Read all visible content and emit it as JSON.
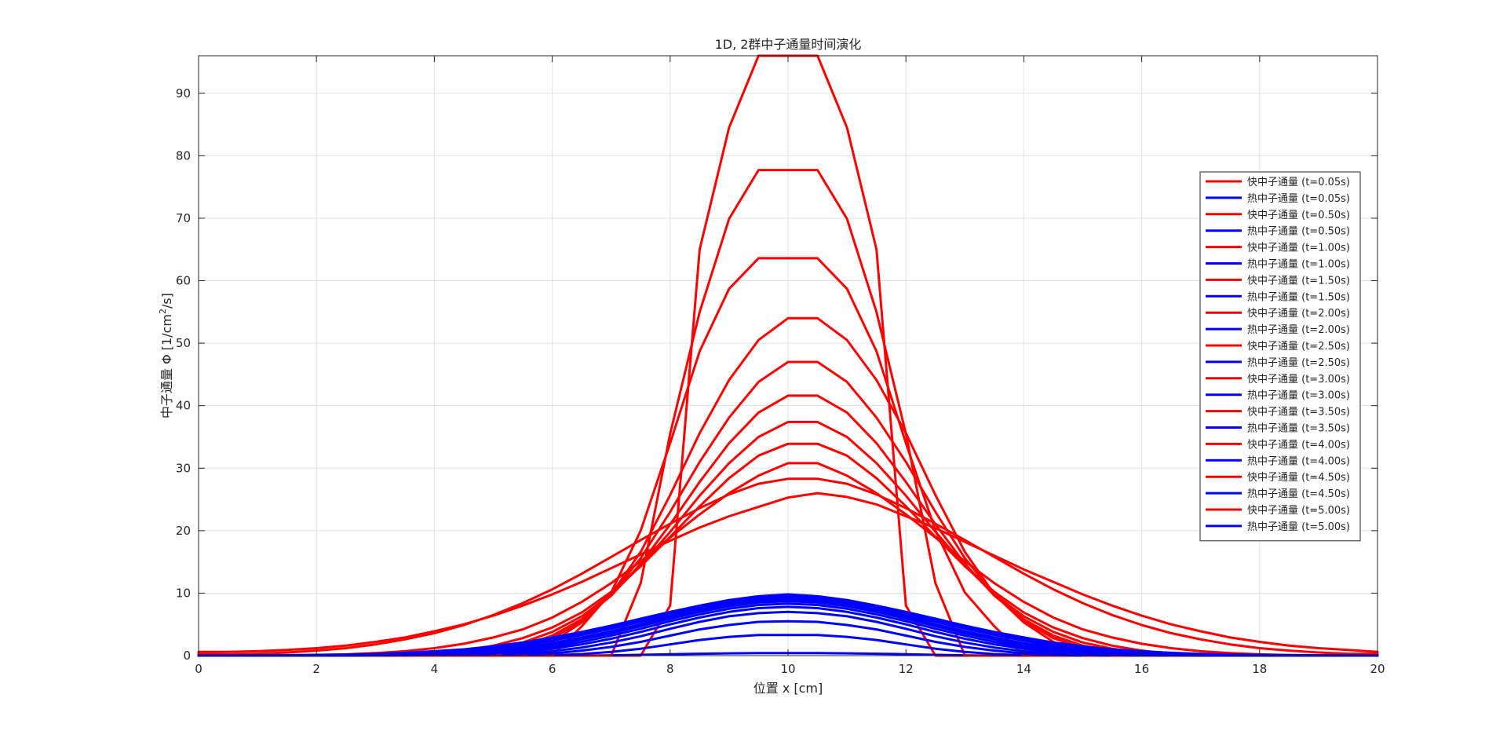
{
  "chart_data": {
    "type": "line",
    "title": "1D, 2群中子通量时间演化",
    "xlabel": "位置 x [cm]",
    "ylabel_prefix": "中子通量 Φ [1/cm",
    "ylabel_sup": "2",
    "ylabel_suffix": "/s]",
    "xlim": [
      0,
      20
    ],
    "ylim": [
      0,
      96
    ],
    "xticks": [
      0,
      2,
      4,
      6,
      8,
      10,
      12,
      14,
      16,
      18,
      20
    ],
    "yticks": [
      0,
      10,
      20,
      30,
      40,
      50,
      60,
      70,
      80,
      90
    ],
    "grid": true,
    "legend_position": "right",
    "colors": {
      "fast": "#ff0000",
      "thermal": "#0000ff",
      "axes": "#262626",
      "grid": "#e1e1e1"
    },
    "x": [
      0,
      0.5,
      1,
      1.5,
      2,
      2.5,
      3,
      3.5,
      4,
      4.5,
      5,
      5.5,
      6,
      6.5,
      7,
      7.5,
      8,
      8.5,
      9,
      9.5,
      10,
      10.5,
      11,
      11.5,
      12,
      12.5,
      13,
      13.5,
      14,
      14.5,
      15,
      15.5,
      16,
      16.5,
      17,
      17.5,
      18,
      18.5,
      19,
      19.5,
      20
    ],
    "series": [
      {
        "name": "快中子通量 (t=0.05s)",
        "color": "#ff0000",
        "values": [
          0.3,
          0,
          0,
          0,
          0,
          0,
          0,
          0,
          0,
          0,
          0,
          0,
          0,
          0,
          0,
          0,
          8,
          65,
          84.5,
          96,
          96,
          96,
          84.5,
          65,
          8,
          0,
          0,
          0,
          0,
          0,
          0,
          0,
          0,
          0,
          0,
          0,
          0,
          0,
          0,
          0,
          0.3
        ]
      },
      {
        "name": "热中子通量 (t=0.05s)",
        "color": "#0000ff",
        "values": [
          0,
          0,
          0,
          0,
          0,
          0,
          0,
          0,
          0,
          0,
          0,
          0,
          0,
          0,
          0.05,
          0.12,
          0.22,
          0.3,
          0.36,
          0.4,
          0.4,
          0.4,
          0.36,
          0.3,
          0.22,
          0.12,
          0.05,
          0,
          0,
          0,
          0,
          0,
          0,
          0,
          0,
          0,
          0,
          0,
          0,
          0,
          0
        ]
      },
      {
        "name": "快中子通量 (t=0.50s)",
        "color": "#ff0000",
        "values": [
          0.3,
          0,
          0,
          0,
          0,
          0,
          0,
          0,
          0,
          0,
          0,
          0,
          0,
          0,
          0,
          11.6,
          35.5,
          55,
          69.9,
          77.7,
          77.7,
          77.7,
          69.9,
          55,
          35.5,
          11.6,
          0,
          0,
          0,
          0,
          0,
          0,
          0,
          0,
          0,
          0,
          0,
          0,
          0,
          0,
          0.3
        ]
      },
      {
        "name": "热中子通量 (t=0.50s)",
        "color": "#0000ff",
        "values": [
          0,
          0,
          0,
          0,
          0,
          0,
          0,
          0,
          0,
          0,
          0,
          0,
          0.05,
          0.25,
          0.6,
          1.1,
          1.8,
          2.5,
          3,
          3.3,
          3.3,
          3.3,
          3,
          2.5,
          1.8,
          1.1,
          0.6,
          0.25,
          0.05,
          0,
          0,
          0,
          0,
          0,
          0,
          0,
          0,
          0,
          0,
          0,
          0
        ]
      },
      {
        "name": "快中子通量 (t=1.00s)",
        "color": "#ff0000",
        "values": [
          0.3,
          0,
          0,
          0,
          0,
          0,
          0,
          0,
          0,
          0,
          0,
          0,
          0,
          4.7,
          10.1,
          20,
          34,
          48.7,
          58.7,
          63.6,
          63.6,
          63.6,
          58.7,
          48.7,
          34,
          20,
          10.1,
          4.7,
          0,
          0,
          0,
          0,
          0,
          0,
          0,
          0,
          0,
          0,
          0,
          0,
          0.3
        ]
      },
      {
        "name": "热中子通量 (t=1.00s)",
        "color": "#0000ff",
        "values": [
          0,
          0,
          0,
          0,
          0,
          0,
          0,
          0,
          0,
          0,
          0,
          0.1,
          0.35,
          0.8,
          1.4,
          2.2,
          3.2,
          4.2,
          4.9,
          5.4,
          5.5,
          5.4,
          4.9,
          4.2,
          3.2,
          2.2,
          1.4,
          0.8,
          0.35,
          0.1,
          0,
          0,
          0,
          0,
          0,
          0,
          0,
          0,
          0,
          0,
          0
        ]
      },
      {
        "name": "快中子通量 (t=1.50s)",
        "color": "#ff0000",
        "values": [
          0.3,
          0,
          0,
          0,
          0,
          0,
          0,
          0,
          0,
          0,
          0,
          0,
          2.2,
          5.3,
          9.8,
          16.6,
          25.7,
          35.6,
          44.1,
          50.5,
          54,
          54,
          50.5,
          44.1,
          35.6,
          25.7,
          16.6,
          9.8,
          5.3,
          2.2,
          0,
          0,
          0,
          0,
          0,
          0,
          0,
          0,
          0,
          0,
          0.3
        ]
      },
      {
        "name": "热中子通量 (t=1.50s)",
        "color": "#0000ff",
        "values": [
          0,
          0,
          0,
          0,
          0,
          0,
          0,
          0,
          0,
          0,
          0.1,
          0.3,
          0.7,
          1.3,
          2.1,
          3.1,
          4.3,
          5.4,
          6.3,
          6.8,
          7,
          6.8,
          6.3,
          5.4,
          4.3,
          3.1,
          2.1,
          1.3,
          0.7,
          0.3,
          0.1,
          0,
          0,
          0,
          0,
          0,
          0,
          0,
          0,
          0,
          0
        ]
      },
      {
        "name": "快中子通量 (t=2.00s)",
        "color": "#ff0000",
        "values": [
          0.3,
          0,
          0,
          0,
          0,
          0,
          0,
          0,
          0,
          0,
          0,
          1.2,
          2.8,
          5.6,
          9.8,
          15.6,
          23,
          31,
          38.1,
          43.8,
          47,
          47,
          43.8,
          38.1,
          31,
          23,
          15.6,
          9.8,
          5.6,
          2.8,
          1.2,
          0,
          0,
          0,
          0,
          0,
          0,
          0,
          0,
          0,
          0.3
        ]
      },
      {
        "name": "热中子通量 (t=2.00s)",
        "color": "#0000ff",
        "values": [
          0,
          0,
          0,
          0,
          0,
          0,
          0,
          0,
          0,
          0.1,
          0.3,
          0.6,
          1.1,
          1.8,
          2.7,
          3.8,
          5,
          6.1,
          7,
          7.6,
          7.8,
          7.6,
          7,
          6.1,
          5,
          3.8,
          2.7,
          1.8,
          1.1,
          0.6,
          0.3,
          0.1,
          0,
          0,
          0,
          0,
          0,
          0,
          0,
          0,
          0
        ]
      },
      {
        "name": "快中子通量 (t=2.50s)",
        "color": "#ff0000",
        "values": [
          0.3,
          0,
          0,
          0,
          0,
          0,
          0,
          0,
          0,
          0,
          0.7,
          1.6,
          3.2,
          5.8,
          9.6,
          14.7,
          21,
          27.8,
          34,
          38.9,
          41.6,
          41.6,
          38.9,
          34,
          27.8,
          21,
          14.7,
          9.6,
          5.8,
          3.2,
          1.6,
          0.7,
          0,
          0,
          0,
          0,
          0,
          0,
          0,
          0,
          0.3
        ]
      },
      {
        "name": "热中子通量 (t=2.50s)",
        "color": "#0000ff",
        "values": [
          0,
          0,
          0,
          0,
          0,
          0,
          0,
          0,
          0.05,
          0.2,
          0.4,
          0.8,
          1.4,
          2.2,
          3.2,
          4.3,
          5.5,
          6.6,
          7.5,
          8.1,
          8.3,
          8.1,
          7.5,
          6.6,
          5.5,
          4.3,
          3.2,
          2.2,
          1.4,
          0.8,
          0.4,
          0.2,
          0.05,
          0,
          0,
          0,
          0,
          0,
          0,
          0,
          0
        ]
      },
      {
        "name": "快中子通量 (t=3.00s)",
        "color": "#ff0000",
        "values": [
          0.3,
          0,
          0,
          0,
          0,
          0,
          0,
          0,
          0,
          0.5,
          1.1,
          2.1,
          3.8,
          6.3,
          9.8,
          14.4,
          19.8,
          25.6,
          30.8,
          35,
          37.4,
          37.4,
          35,
          30.8,
          25.6,
          19.8,
          14.4,
          9.8,
          6.3,
          3.8,
          2.1,
          1.1,
          0.5,
          0,
          0,
          0,
          0,
          0,
          0,
          0,
          0.3
        ]
      },
      {
        "name": "热中子通量 (t=3.00s)",
        "color": "#0000ff",
        "values": [
          0,
          0,
          0,
          0,
          0,
          0,
          0,
          0.05,
          0.15,
          0.3,
          0.6,
          1.1,
          1.7,
          2.6,
          3.6,
          4.7,
          5.9,
          7,
          7.9,
          8.5,
          8.7,
          8.5,
          7.9,
          7,
          5.9,
          4.7,
          3.6,
          2.6,
          1.7,
          1.1,
          0.6,
          0.3,
          0.15,
          0.05,
          0,
          0,
          0,
          0,
          0,
          0,
          0
        ]
      },
      {
        "name": "快中子通量 (t=3.50s)",
        "color": "#ff0000",
        "values": [
          0.3,
          0,
          0,
          0,
          0,
          0,
          0,
          0.1,
          0.3,
          0.8,
          1.6,
          2.8,
          4.5,
          6.9,
          10.2,
          14.3,
          19,
          23.9,
          28.4,
          32,
          33.9,
          33.9,
          32,
          28.4,
          23.9,
          19,
          14.3,
          10.2,
          6.9,
          4.5,
          2.8,
          1.6,
          0.8,
          0.3,
          0.1,
          0,
          0,
          0,
          0,
          0,
          0.3
        ]
      },
      {
        "name": "热中子通量 (t=3.50s)",
        "color": "#0000ff",
        "values": [
          0,
          0,
          0,
          0,
          0,
          0,
          0.05,
          0.1,
          0.2,
          0.4,
          0.8,
          1.3,
          2,
          2.9,
          3.9,
          5,
          6.2,
          7.3,
          8.2,
          8.8,
          9,
          8.8,
          8.2,
          7.3,
          6.2,
          5,
          3.9,
          2.9,
          2,
          1.3,
          0.8,
          0.4,
          0.2,
          0.1,
          0.05,
          0,
          0,
          0,
          0,
          0,
          0
        ]
      },
      {
        "name": "快中子通量 (t=4.00s)",
        "color": "#ff0000",
        "values": [
          0.3,
          0,
          0,
          0,
          0.1,
          0.2,
          0.4,
          0.7,
          1.2,
          1.9,
          2.9,
          4.2,
          6.1,
          8.6,
          11.6,
          15.1,
          18.9,
          22.6,
          26,
          28.8,
          30.8,
          30.8,
          28.8,
          26,
          22.6,
          18.9,
          15.1,
          11.6,
          8.6,
          6.1,
          4.2,
          2.9,
          1.9,
          1.2,
          0.7,
          0.4,
          0.2,
          0.1,
          0,
          0,
          0.3
        ]
      },
      {
        "name": "热中子通量 (t=4.00s)",
        "color": "#0000ff",
        "values": [
          0,
          0,
          0,
          0,
          0,
          0.05,
          0.1,
          0.2,
          0.35,
          0.6,
          1,
          1.6,
          2.4,
          3.3,
          4.3,
          5.4,
          6.5,
          7.6,
          8.5,
          9.1,
          9.3,
          9.1,
          8.5,
          7.6,
          6.5,
          5.4,
          4.3,
          3.3,
          2.4,
          1.6,
          1,
          0.6,
          0.35,
          0.2,
          0.1,
          0.05,
          0,
          0,
          0,
          0,
          0
        ]
      },
      {
        "name": "快中子通量 (t=4.50s)",
        "color": "#ff0000",
        "values": [
          0.3,
          0.2,
          0.3,
          0.5,
          0.8,
          1.2,
          1.8,
          2.6,
          3.6,
          4.9,
          6.5,
          8.4,
          10.6,
          13.1,
          15.8,
          18.5,
          21.1,
          23.6,
          25.8,
          27.5,
          28.3,
          28.3,
          27.5,
          25.8,
          23.6,
          21.1,
          18.5,
          15.8,
          13.1,
          10.6,
          8.4,
          6.5,
          4.9,
          3.6,
          2.6,
          1.8,
          1.2,
          0.8,
          0.5,
          0.3,
          0.3
        ]
      },
      {
        "name": "热中子通量 (t=4.50s)",
        "color": "#0000ff",
        "values": [
          0,
          0,
          0,
          0.02,
          0.05,
          0.1,
          0.18,
          0.3,
          0.5,
          0.8,
          1.2,
          1.8,
          2.6,
          3.5,
          4.5,
          5.6,
          6.7,
          7.8,
          8.7,
          9.3,
          9.5,
          9.3,
          8.7,
          7.8,
          6.7,
          5.6,
          4.5,
          3.5,
          2.6,
          1.8,
          1.2,
          0.8,
          0.5,
          0.3,
          0.18,
          0.1,
          0.05,
          0.02,
          0,
          0,
          0
        ]
      },
      {
        "name": "快中子通量 (t=5.00s)",
        "color": "#ff0000",
        "values": [
          0.6,
          0.6,
          0.7,
          0.9,
          1.2,
          1.6,
          2.2,
          2.9,
          3.9,
          5,
          6.4,
          8,
          9.8,
          11.8,
          14,
          16.2,
          18.4,
          20.5,
          22.3,
          23.8,
          25.3,
          26,
          25.4,
          24.2,
          22.3,
          20.4,
          18.2,
          16,
          13.8,
          11.8,
          9.8,
          8,
          6.4,
          5,
          3.9,
          2.9,
          2.2,
          1.6,
          1.2,
          0.9,
          0.6
        ]
      },
      {
        "name": "热中子通量 (t=5.00s)",
        "color": "#0000ff",
        "values": [
          0.05,
          0.05,
          0.06,
          0.08,
          0.12,
          0.18,
          0.28,
          0.45,
          0.7,
          1,
          1.5,
          2.1,
          2.9,
          3.8,
          4.8,
          5.9,
          7,
          8,
          8.9,
          9.5,
          9.8,
          9.5,
          8.9,
          8,
          7,
          5.9,
          4.8,
          3.8,
          2.9,
          2.1,
          1.5,
          1,
          0.7,
          0.45,
          0.28,
          0.18,
          0.12,
          0.08,
          0.06,
          0.05,
          0.05
        ]
      }
    ]
  }
}
